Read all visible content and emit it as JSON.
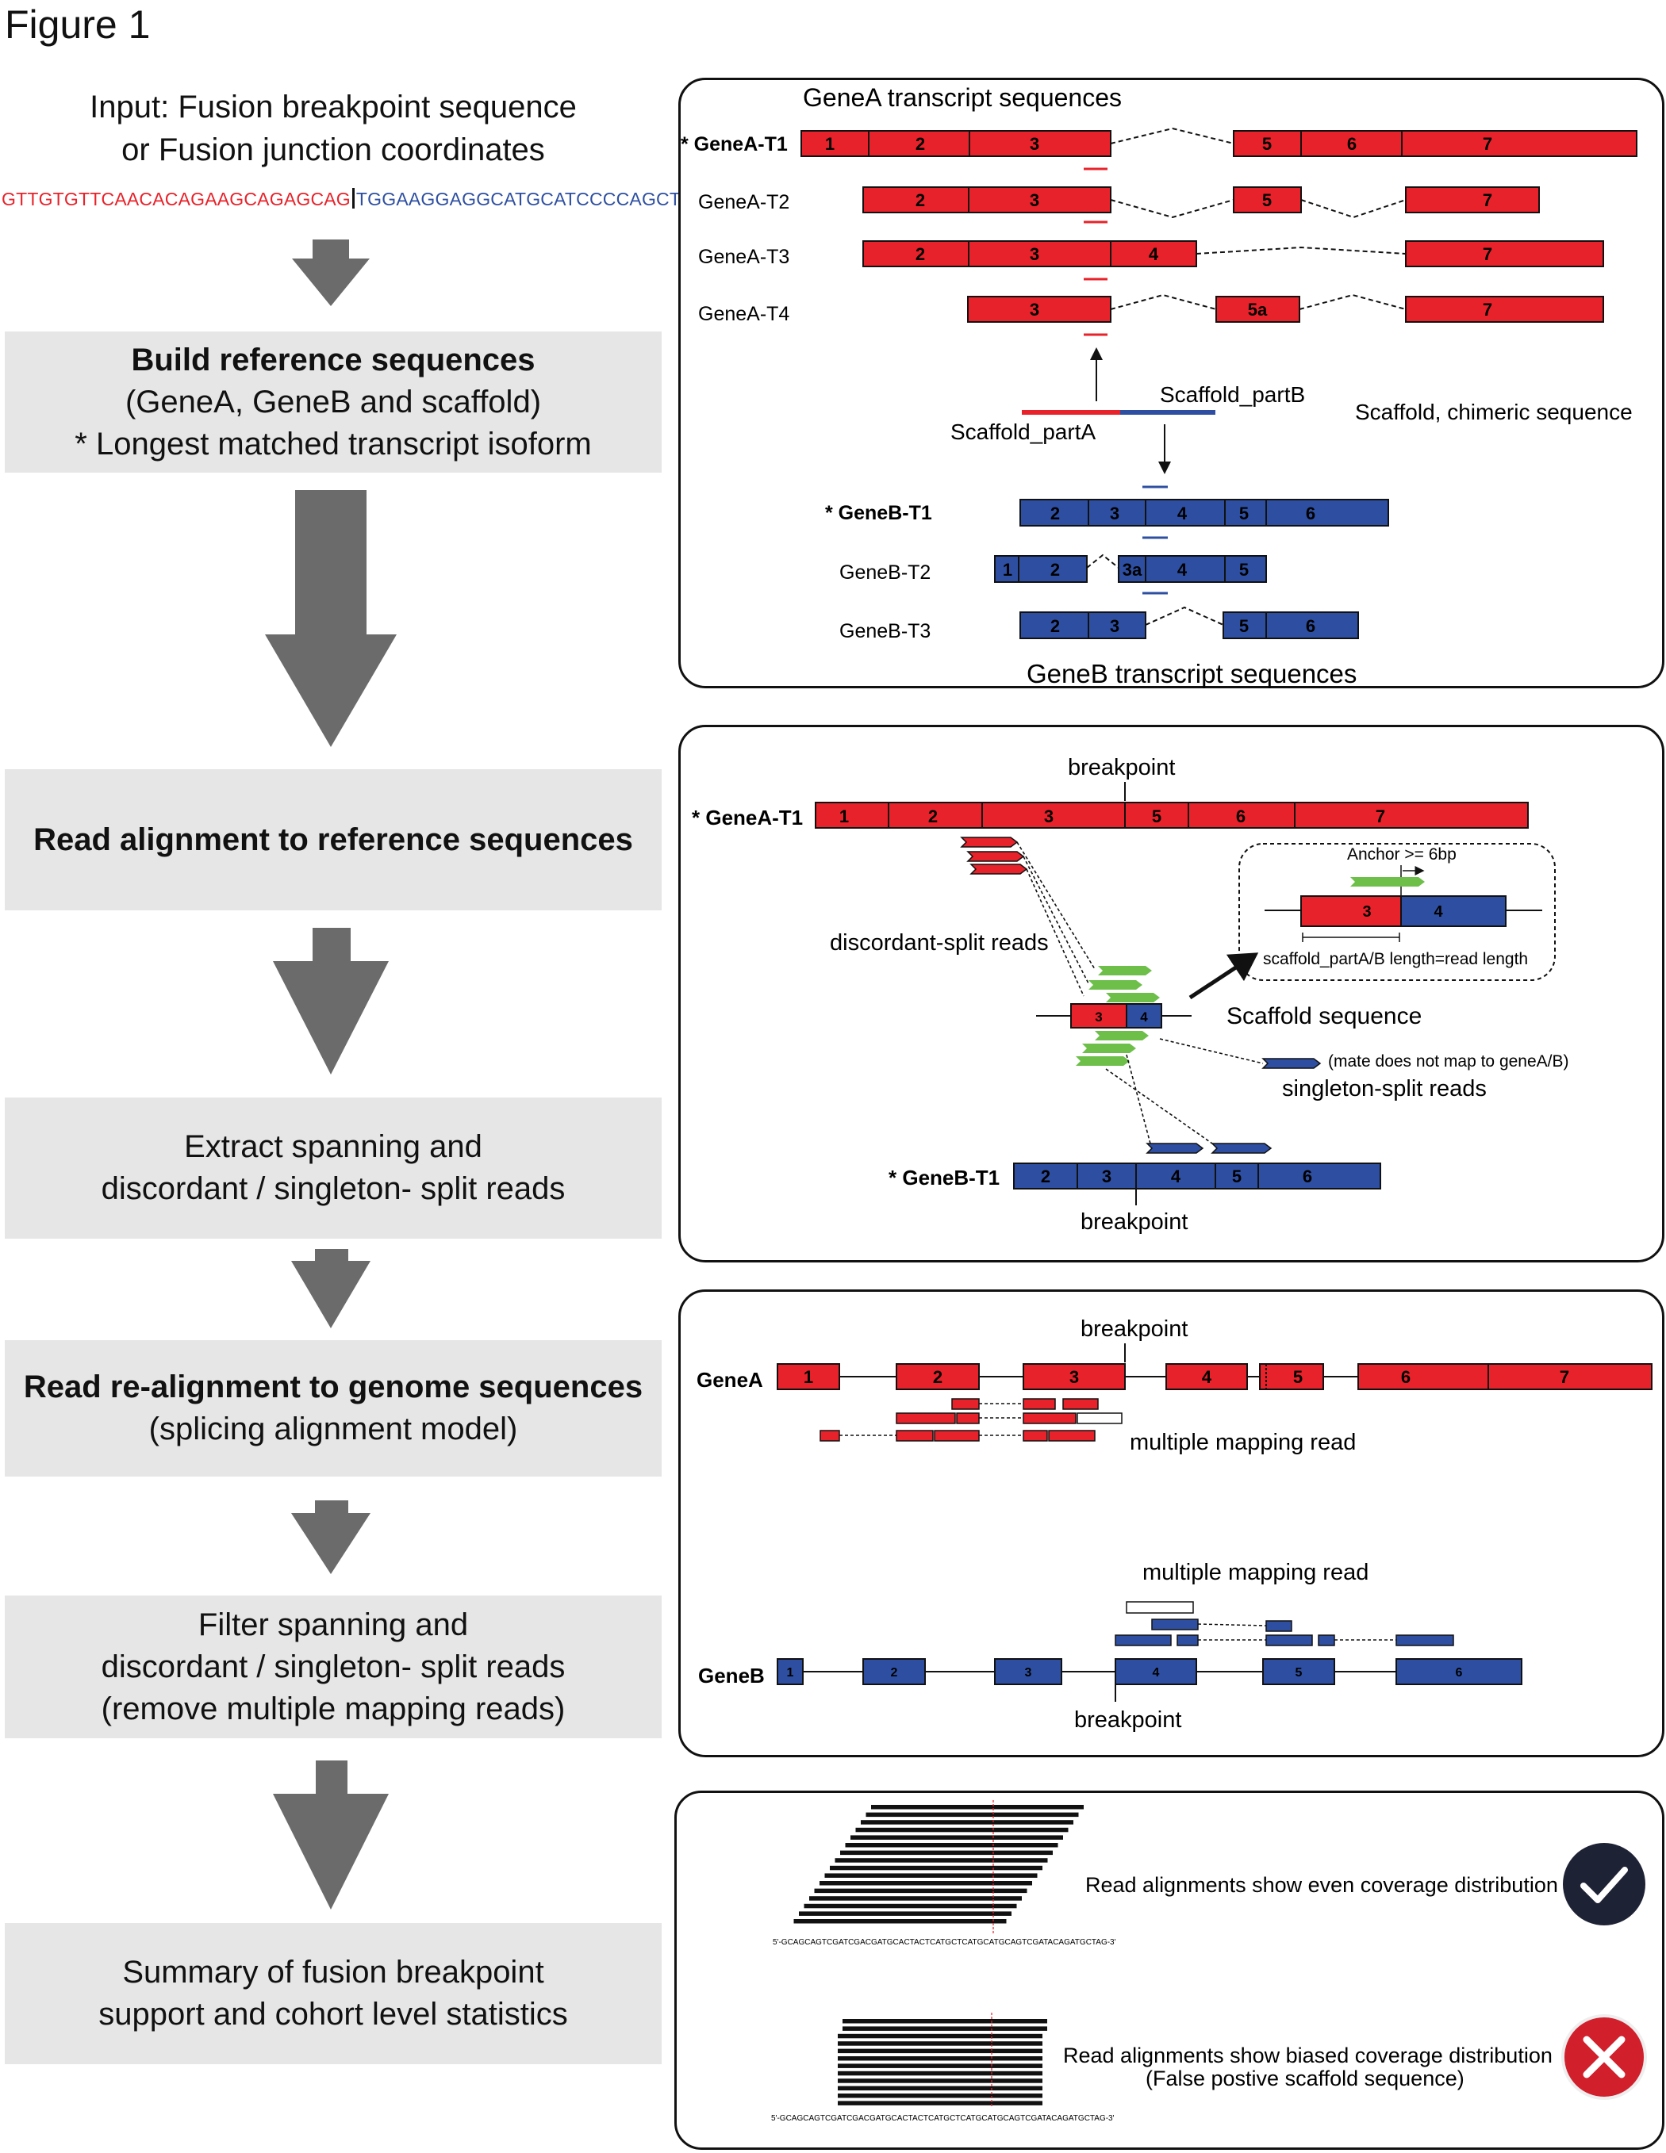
{
  "figure_title": "Figure 1",
  "input": {
    "line1": "Input: Fusion breakpoint sequence",
    "line2": "or Fusion junction coordinates",
    "seq_a": "GTTGTGTTCAACACAGAAGCAGAGCAG",
    "seq_b": "TGGAAGGAGGCATGCATCCCCAGCTGAT"
  },
  "steps": {
    "build": {
      "title": "Build reference sequences",
      "line2": "(GeneA, GeneB and scaffold)",
      "line3": "* Longest matched transcript isoform"
    },
    "align": {
      "title": "Read alignment to reference sequences"
    },
    "extract": {
      "line1": "Extract spanning and",
      "line2": "discordant / singleton- split reads"
    },
    "realign": {
      "title": "Read re-alignment to genome sequences",
      "line2": "(splicing alignment model)"
    },
    "filter": {
      "line1": "Filter spanning and",
      "line2": "discordant / singleton- split reads",
      "line3": "(remove multiple mapping reads)"
    },
    "summary": {
      "line1": "Summary of fusion breakpoint",
      "line2": "support and cohort level statistics"
    }
  },
  "panel1": {
    "genea_header": "GeneA transcript sequences",
    "geneb_header": "GeneB transcript sequences",
    "genea_rows": [
      "* GeneA-T1",
      "GeneA-T2",
      "GeneA-T3",
      "GeneA-T4"
    ],
    "geneb_rows": [
      "* GeneB-T1",
      "GeneB-T2",
      "GeneB-T3"
    ],
    "scaffold_partA": "Scaffold_partA",
    "scaffold_partB": "Scaffold_partB",
    "scaffold_label": "Scaffold, chimeric sequence"
  },
  "panel2": {
    "breakpoint": "breakpoint",
    "genea": "* GeneA-T1",
    "geneb": "* GeneB-T1",
    "discordant": "discordant-split reads",
    "scaffold": "Scaffold sequence",
    "mate_note": "(mate does not map to geneA/B)",
    "singleton": "singleton-split reads",
    "anchor": "Anchor >= 6bp",
    "length_note": "scaffold_partA/B length=read length"
  },
  "panel3": {
    "breakpoint": "breakpoint",
    "genea": "GeneA",
    "geneb": "GeneB",
    "multi": "multiple mapping read"
  },
  "panel4": {
    "even": "Read alignments show even coverage distribution",
    "biased": "Read alignments show biased coverage distribution",
    "biased_note": "(False postive scaffold sequence)",
    "seq": "5'-GCAGCAGTCGATCGACGATGCACTACTCATGCTCATGCATGCAGTCGATACAGATGCTAG-3'"
  },
  "colors": {
    "genea": "#e8222a",
    "geneb": "#2e4fa1",
    "read": "#6dbf4a",
    "step_bg": "#e6e6e6",
    "arrow": "#6b6b6b"
  }
}
